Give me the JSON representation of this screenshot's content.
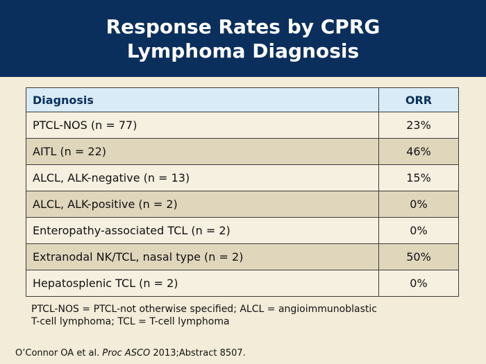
{
  "title": {
    "line1": "Response Rates by CPRG",
    "line2": "Lymphoma Diagnosis"
  },
  "table": {
    "headers": {
      "diagnosis": "Diagnosis",
      "orr": "ORR"
    },
    "rows": [
      {
        "diagnosis": "PTCL-NOS (n = 77)",
        "orr": "23%"
      },
      {
        "diagnosis": "AITL (n = 22)",
        "orr": "46%"
      },
      {
        "diagnosis": "ALCL, ALK-negative (n = 13)",
        "orr": "15%"
      },
      {
        "diagnosis": "ALCL, ALK-positive (n = 2)",
        "orr": "0%"
      },
      {
        "diagnosis": "Enteropathy-associated TCL (n = 2)",
        "orr": "0%"
      },
      {
        "diagnosis": "Extranodal NK/TCL, nasal type (n = 2)",
        "orr": "50%"
      },
      {
        "diagnosis": "Hepatosplenic TCL (n = 2)",
        "orr": "0%"
      }
    ]
  },
  "footnote": {
    "line1": "PTCL-NOS = PTCL-not otherwise specified; ALCL = angioimmunoblastic",
    "line2": "T-cell lymphoma; TCL = T-cell lymphoma"
  },
  "citation": {
    "prefix": "O’Connor OA et al. ",
    "journal": "Proc ASCO",
    "suffix": " 2013;Abstract 8507."
  },
  "colors": {
    "title_bg": "#0b2f5c",
    "header_bg": "#d8ebf6",
    "row_light": "#f6f0e0",
    "row_dark": "#e0d6bc",
    "page_bg": "#f3ecd8"
  }
}
